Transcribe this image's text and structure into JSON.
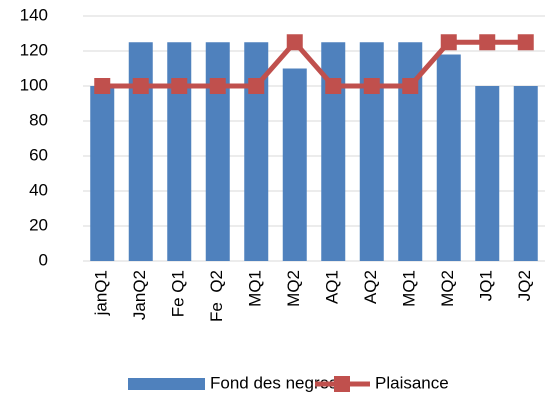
{
  "chart_data": {
    "type": "bar",
    "categories": [
      "janQ1",
      "JanQ2",
      "Fe Q1",
      "Fe  Q2",
      "MQ1",
      "MQ2",
      "AQ1",
      "AQ2",
      "MQ1",
      "MQ2",
      "JQ1",
      "JQ2"
    ],
    "series": [
      {
        "name": "Fond des negres",
        "type": "bar",
        "color": "#4f81bd",
        "values": [
          100,
          125,
          125,
          125,
          125,
          110,
          125,
          125,
          125,
          118,
          100,
          100
        ]
      },
      {
        "name": "Plaisance",
        "type": "line",
        "color": "#c0504d",
        "values": [
          100,
          100,
          100,
          100,
          100,
          125,
          100,
          100,
          100,
          125,
          125,
          125
        ]
      }
    ],
    "ylim": [
      0,
      140
    ],
    "yticks": [
      0,
      20,
      40,
      60,
      80,
      100,
      120,
      140
    ],
    "grid": true,
    "legend": "bottom"
  }
}
